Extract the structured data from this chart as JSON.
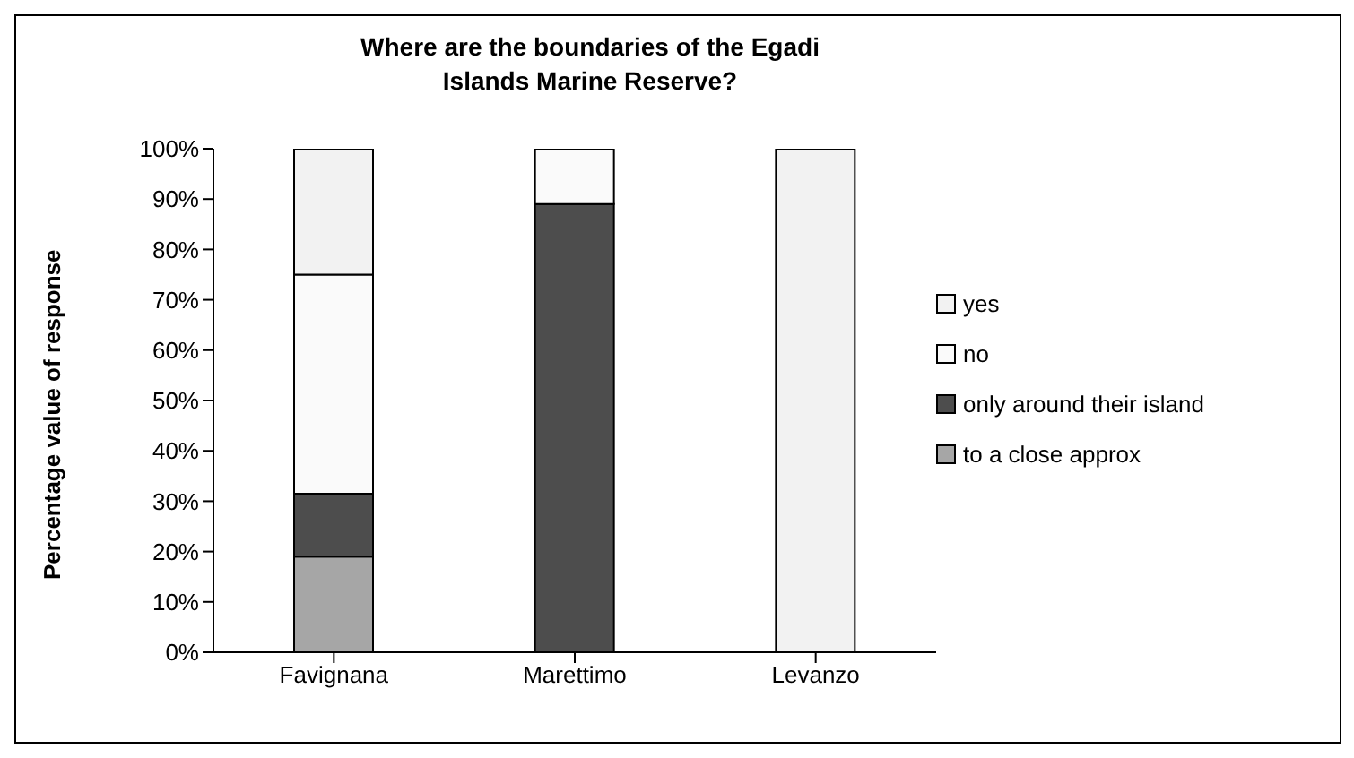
{
  "chart_data": {
    "type": "bar",
    "title": "Where are the boundaries of the Egadi Islands Marine Reserve?",
    "ylabel": "Percentage value of response",
    "categories": [
      "Favignana",
      "Marettimo",
      "Levanzo"
    ],
    "stacked": true,
    "series": [
      {
        "name": "to a close approx",
        "color": "#a6a6a6",
        "values": [
          19,
          0,
          0
        ]
      },
      {
        "name": "only around their island",
        "color": "#4d4d4d",
        "values": [
          12.5,
          89,
          0
        ]
      },
      {
        "name": "no",
        "color": "#fafafa",
        "values": [
          43.5,
          11,
          0
        ]
      },
      {
        "name": "yes",
        "color": "#f2f2f2",
        "values": [
          25,
          0,
          100
        ]
      }
    ],
    "ylim": [
      0,
      100
    ],
    "yticks": [
      {
        "value": 0,
        "label": "0%"
      },
      {
        "value": 10,
        "label": "10%"
      },
      {
        "value": 20,
        "label": "20%"
      },
      {
        "value": 30,
        "label": "30%"
      },
      {
        "value": 40,
        "label": "40%"
      },
      {
        "value": 50,
        "label": "50%"
      },
      {
        "value": 60,
        "label": "60%"
      },
      {
        "value": 70,
        "label": "70%"
      },
      {
        "value": 80,
        "label": "80%"
      },
      {
        "value": 90,
        "label": "90%"
      },
      {
        "value": 100,
        "label": "100%"
      }
    ],
    "grid": false,
    "legend": "right"
  }
}
